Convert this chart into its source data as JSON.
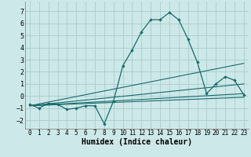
{
  "xlabel": "Humidex (Indice chaleur)",
  "xlim": [
    -0.5,
    23.5
  ],
  "ylim": [
    -2.7,
    7.8
  ],
  "yticks": [
    -2,
    -1,
    0,
    1,
    2,
    3,
    4,
    5,
    6,
    7
  ],
  "xticks": [
    0,
    1,
    2,
    3,
    4,
    5,
    6,
    7,
    8,
    9,
    10,
    11,
    12,
    13,
    14,
    15,
    16,
    17,
    18,
    19,
    20,
    21,
    22,
    23
  ],
  "background_color": "#cde8e8",
  "grid_color": "#aacccc",
  "line_color": "#1a6b6b",
  "series": [
    {
      "x": [
        0,
        1,
        2,
        3,
        4,
        5,
        6,
        7,
        8,
        9,
        10,
        11,
        12,
        13,
        14,
        15,
        16,
        17,
        18,
        19,
        20,
        21,
        22,
        23
      ],
      "y": [
        -0.7,
        -1.0,
        -0.6,
        -0.7,
        -1.1,
        -1.0,
        -0.8,
        -0.8,
        -2.3,
        -0.4,
        2.5,
        3.8,
        5.3,
        6.3,
        6.3,
        6.9,
        6.3,
        4.7,
        2.8,
        0.2,
        1.0,
        1.6,
        1.3,
        0.1
      ],
      "markers": true
    },
    {
      "x": [
        0,
        23
      ],
      "y": [
        -0.8,
        2.7
      ],
      "markers": false
    },
    {
      "x": [
        0,
        23
      ],
      "y": [
        -0.8,
        1.0
      ],
      "markers": false
    },
    {
      "x": [
        0,
        23
      ],
      "y": [
        -0.8,
        0.2
      ],
      "markers": false
    },
    {
      "x": [
        0,
        23
      ],
      "y": [
        -0.8,
        -0.1
      ],
      "markers": false
    }
  ]
}
